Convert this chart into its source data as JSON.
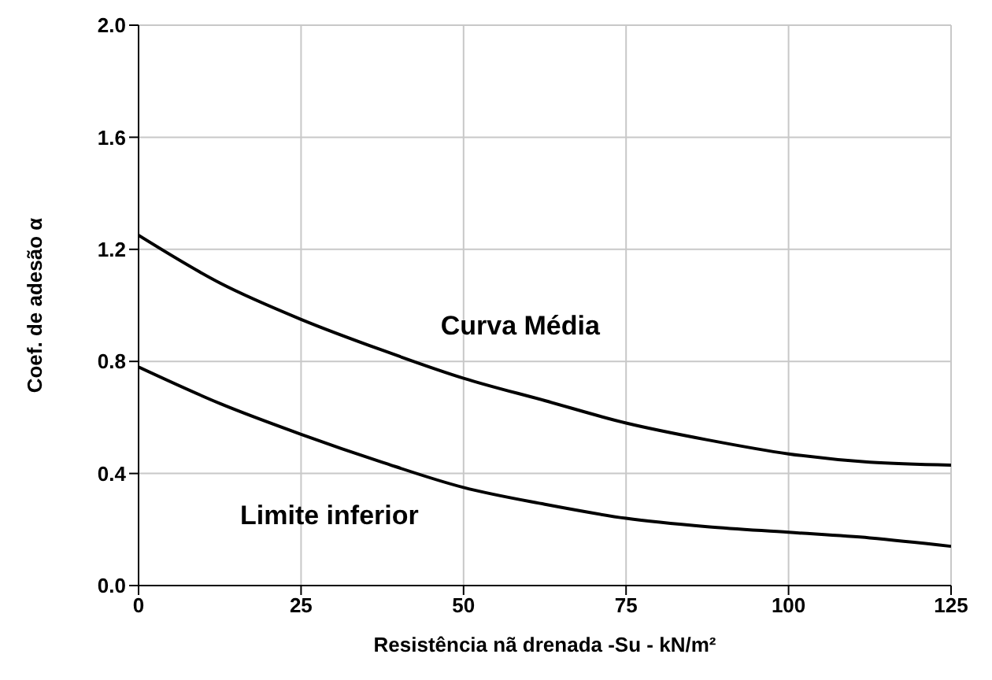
{
  "chart_data": {
    "type": "line",
    "xlabel": "Resistência nã drenada -Su - kN/m²",
    "ylabel": "Coef. de adesão α",
    "x": [
      0,
      12.5,
      25,
      37.5,
      50,
      62.5,
      75,
      87.5,
      100,
      112.5,
      125
    ],
    "series": [
      {
        "name": "Curva Média",
        "color": "#000000",
        "values": [
          1.25,
          1.08,
          0.95,
          0.84,
          0.74,
          0.66,
          0.58,
          0.52,
          0.47,
          0.44,
          0.43
        ]
      },
      {
        "name": "Limite inferior",
        "color": "#000000",
        "values": [
          0.78,
          0.65,
          0.54,
          0.44,
          0.35,
          0.29,
          0.24,
          0.21,
          0.19,
          0.17,
          0.14
        ]
      }
    ],
    "xlim": [
      0,
      125
    ],
    "xticks": [
      0,
      25,
      50,
      75,
      100,
      125
    ],
    "ylim": [
      0,
      2
    ],
    "yticks": [
      {
        "value": 0,
        "label": "0.0"
      },
      0.4,
      0.8,
      1.2,
      1.6,
      {
        "value": 2,
        "label": "2.0"
      }
    ],
    "grid": true,
    "legend": false,
    "marker": "none",
    "line_style": "solid"
  }
}
